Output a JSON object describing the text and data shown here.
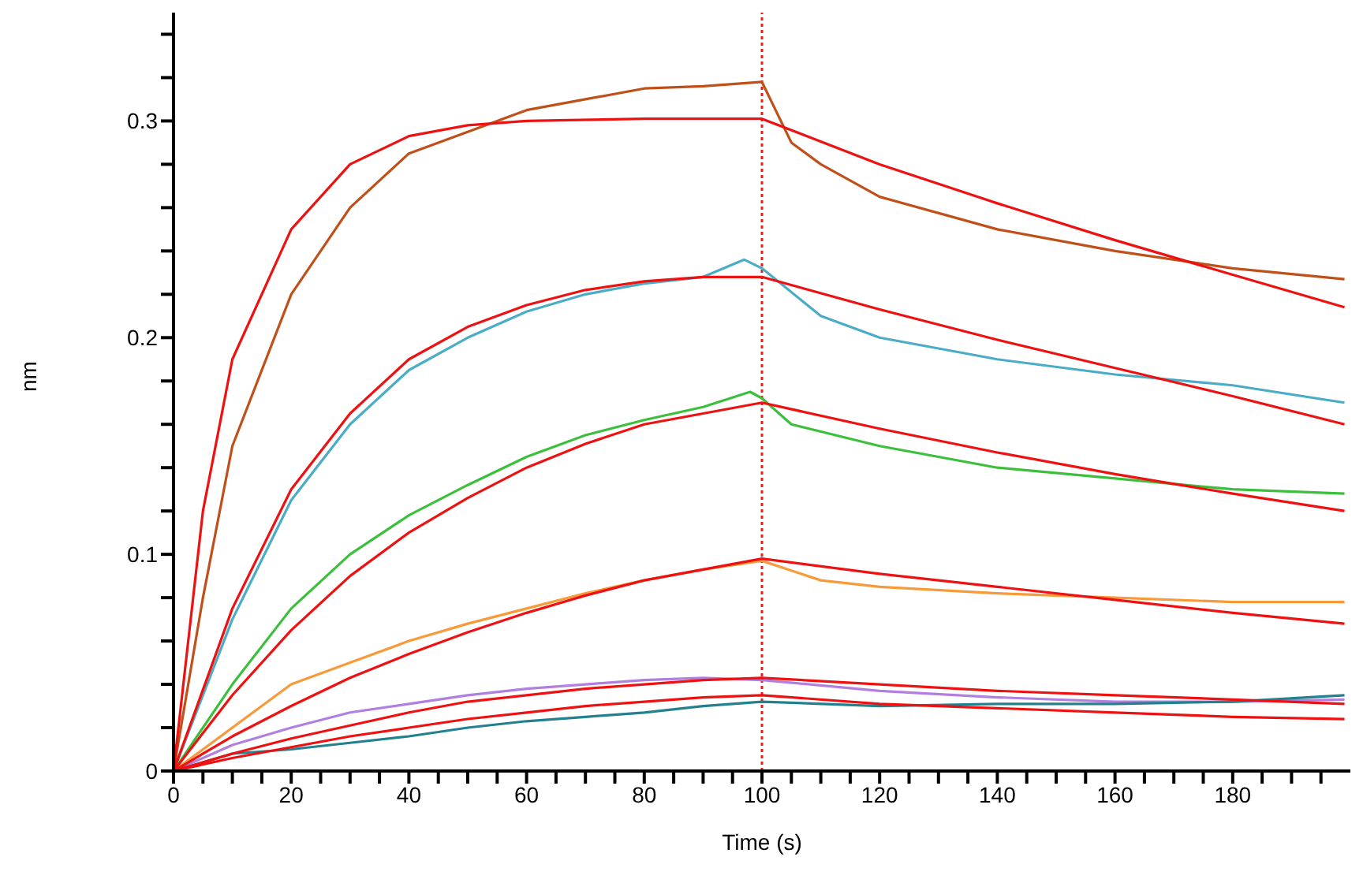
{
  "chart_data": {
    "type": "line",
    "xlabel": "Time (s)",
    "ylabel": "nm",
    "xlim": [
      0,
      200
    ],
    "ylim": [
      0,
      0.35
    ],
    "xticks": [
      0,
      {
        "value": 5,
        "label": null
      },
      {
        "value": 10,
        "label": null
      },
      {
        "value": 15,
        "label": null
      },
      20,
      {
        "value": 25,
        "label": null
      },
      {
        "value": 30,
        "label": null
      },
      {
        "value": 35,
        "label": null
      },
      40,
      {
        "value": 45,
        "label": null
      },
      {
        "value": 50,
        "label": null
      },
      {
        "value": 55,
        "label": null
      },
      60,
      {
        "value": 65,
        "label": null
      },
      {
        "value": 70,
        "label": null
      },
      {
        "value": 75,
        "label": null
      },
      80,
      {
        "value": 85,
        "label": null
      },
      {
        "value": 90,
        "label": null
      },
      {
        "value": 95,
        "label": null
      },
      100,
      {
        "value": 105,
        "label": null
      },
      {
        "value": 110,
        "label": null
      },
      {
        "value": 115,
        "label": null
      },
      120,
      {
        "value": 125,
        "label": null
      },
      {
        "value": 130,
        "label": null
      },
      {
        "value": 135,
        "label": null
      },
      140,
      {
        "value": 145,
        "label": null
      },
      {
        "value": 150,
        "label": null
      },
      {
        "value": 155,
        "label": null
      },
      160,
      {
        "value": 165,
        "label": null
      },
      {
        "value": 170,
        "label": null
      },
      {
        "value": 175,
        "label": null
      },
      180,
      {
        "value": 185,
        "label": null
      },
      {
        "value": 190,
        "label": null
      },
      {
        "value": 195,
        "label": null
      }
    ],
    "yticks": [
      0,
      {
        "value": 0.02,
        "label": null
      },
      {
        "value": 0.04,
        "label": null
      },
      {
        "value": 0.06,
        "label": null
      },
      {
        "value": 0.08,
        "label": null
      },
      0.1,
      {
        "value": 0.12,
        "label": null
      },
      {
        "value": 0.14,
        "label": null
      },
      {
        "value": 0.16,
        "label": null
      },
      {
        "value": 0.18,
        "label": null
      },
      0.2,
      {
        "value": 0.22,
        "label": null
      },
      {
        "value": 0.24,
        "label": null
      },
      {
        "value": 0.26,
        "label": null
      },
      {
        "value": 0.28,
        "label": null
      },
      0.3,
      {
        "value": 0.32,
        "label": null
      },
      {
        "value": 0.34,
        "label": null
      }
    ],
    "grid": false,
    "legend": false,
    "marker": "none",
    "line_style": "solid",
    "ref_lines": [
      {
        "axis": "x",
        "value": 100,
        "color": "#e02020",
        "line_style": "dotted"
      }
    ],
    "series": [
      {
        "color": "#c0501a",
        "x": [
          0,
          5,
          10,
          20,
          30,
          40,
          50,
          60,
          70,
          80,
          90,
          100,
          105,
          110,
          120,
          140,
          160,
          180,
          199
        ],
        "values": [
          0,
          0.08,
          0.15,
          0.22,
          0.26,
          0.285,
          0.295,
          0.305,
          0.31,
          0.315,
          0.316,
          0.318,
          0.29,
          0.28,
          0.265,
          0.25,
          0.24,
          0.232,
          0.227
        ]
      },
      {
        "color": "#4bacc6",
        "x": [
          0,
          10,
          20,
          30,
          40,
          50,
          60,
          70,
          80,
          90,
          97,
          100,
          110,
          120,
          140,
          160,
          180,
          199
        ],
        "values": [
          0,
          0.07,
          0.125,
          0.16,
          0.185,
          0.2,
          0.212,
          0.22,
          0.225,
          0.228,
          0.236,
          0.232,
          0.21,
          0.2,
          0.19,
          0.183,
          0.178,
          0.17
        ]
      },
      {
        "color": "#3cbf3c",
        "x": [
          0,
          10,
          20,
          30,
          40,
          50,
          60,
          70,
          80,
          90,
          98,
          100,
          105,
          120,
          140,
          160,
          180,
          199
        ],
        "values": [
          0,
          0.04,
          0.075,
          0.1,
          0.118,
          0.132,
          0.145,
          0.155,
          0.162,
          0.168,
          0.175,
          0.172,
          0.16,
          0.15,
          0.14,
          0.135,
          0.13,
          0.128
        ]
      },
      {
        "color": "#f79a3a",
        "x": [
          0,
          10,
          20,
          30,
          40,
          50,
          60,
          70,
          80,
          90,
          100,
          110,
          120,
          140,
          160,
          180,
          199
        ],
        "values": [
          0,
          0.02,
          0.04,
          0.05,
          0.06,
          0.068,
          0.075,
          0.082,
          0.088,
          0.093,
          0.097,
          0.088,
          0.085,
          0.082,
          0.08,
          0.078,
          0.078
        ]
      },
      {
        "color": "#b07fe0",
        "x": [
          0,
          10,
          20,
          30,
          40,
          50,
          60,
          70,
          80,
          90,
          100,
          120,
          140,
          160,
          180,
          199
        ],
        "values": [
          0,
          0.012,
          0.02,
          0.027,
          0.031,
          0.035,
          0.038,
          0.04,
          0.042,
          0.043,
          0.042,
          0.037,
          0.034,
          0.032,
          0.032,
          0.033
        ]
      },
      {
        "color": "#23808f",
        "x": [
          0,
          10,
          20,
          30,
          40,
          50,
          60,
          70,
          80,
          90,
          100,
          120,
          140,
          160,
          180,
          199
        ],
        "values": [
          0,
          0.008,
          0.01,
          0.013,
          0.016,
          0.02,
          0.023,
          0.025,
          0.027,
          0.03,
          0.032,
          0.03,
          0.031,
          0.031,
          0.032,
          0.035
        ]
      },
      {
        "color": "#ee1111",
        "x": [
          0,
          5,
          10,
          20,
          30,
          40,
          50,
          60,
          80,
          100,
          120,
          140,
          160,
          180,
          199
        ],
        "values": [
          0,
          0.12,
          0.19,
          0.25,
          0.28,
          0.293,
          0.298,
          0.3,
          0.301,
          0.301,
          0.28,
          0.262,
          0.245,
          0.229,
          0.214
        ]
      },
      {
        "color": "#ee1111",
        "x": [
          0,
          10,
          20,
          30,
          40,
          50,
          60,
          70,
          80,
          90,
          100,
          120,
          140,
          160,
          180,
          199
        ],
        "values": [
          0,
          0.075,
          0.13,
          0.165,
          0.19,
          0.205,
          0.215,
          0.222,
          0.226,
          0.228,
          0.228,
          0.213,
          0.199,
          0.186,
          0.173,
          0.16
        ]
      },
      {
        "color": "#ee1111",
        "x": [
          0,
          10,
          20,
          30,
          40,
          50,
          60,
          70,
          80,
          90,
          100,
          120,
          140,
          160,
          180,
          199
        ],
        "values": [
          0,
          0.035,
          0.065,
          0.09,
          0.11,
          0.126,
          0.14,
          0.151,
          0.16,
          0.165,
          0.17,
          0.158,
          0.147,
          0.137,
          0.128,
          0.12
        ]
      },
      {
        "color": "#ee1111",
        "x": [
          0,
          10,
          20,
          30,
          40,
          50,
          60,
          70,
          80,
          90,
          100,
          120,
          140,
          160,
          180,
          199
        ],
        "values": [
          0,
          0.016,
          0.03,
          0.043,
          0.054,
          0.064,
          0.073,
          0.081,
          0.088,
          0.093,
          0.098,
          0.091,
          0.085,
          0.079,
          0.073,
          0.068
        ]
      },
      {
        "color": "#ee1111",
        "x": [
          0,
          10,
          20,
          30,
          40,
          50,
          60,
          70,
          80,
          90,
          100,
          120,
          140,
          160,
          180,
          199
        ],
        "values": [
          0,
          0.008,
          0.015,
          0.021,
          0.027,
          0.032,
          0.035,
          0.038,
          0.04,
          0.042,
          0.043,
          0.04,
          0.037,
          0.035,
          0.033,
          0.031
        ]
      },
      {
        "color": "#ee1111",
        "x": [
          0,
          10,
          20,
          30,
          40,
          50,
          60,
          70,
          80,
          90,
          100,
          120,
          140,
          160,
          180,
          199
        ],
        "values": [
          0,
          0.006,
          0.011,
          0.016,
          0.02,
          0.024,
          0.027,
          0.03,
          0.032,
          0.034,
          0.035,
          0.031,
          0.029,
          0.027,
          0.025,
          0.024
        ]
      }
    ]
  }
}
